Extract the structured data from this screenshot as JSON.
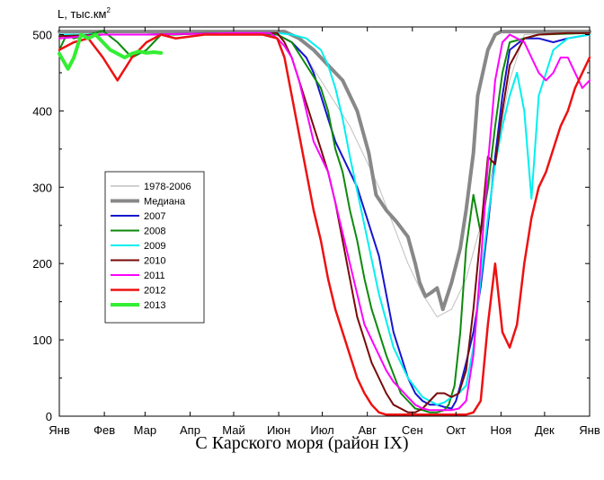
{
  "caption": "С Карского моря (район IX)",
  "chart_data": {
    "type": "line",
    "ylabel": "L, тыс.км",
    "ylabel_sup": "2",
    "xlabel": "",
    "xlim": [
      0,
      365
    ],
    "ylim": [
      0,
      510
    ],
    "yticks": [
      0,
      100,
      200,
      300,
      400,
      500
    ],
    "x_tick_labels": [
      "Янв",
      "Фев",
      "Мар",
      "Апр",
      "Май",
      "Июн",
      "Июл",
      "Авг",
      "Сен",
      "Окт",
      "Ноя",
      "Дек",
      "Янв"
    ],
    "x_tick_positions": [
      0,
      31,
      59,
      90,
      120,
      151,
      181,
      212,
      243,
      273,
      304,
      334,
      365
    ],
    "grid": false,
    "legend_position": "left-middle",
    "series": [
      {
        "name": "1978-2006",
        "color": "#c0c0c0",
        "width": 1,
        "x": [
          0,
          140,
          150,
          160,
          170,
          180,
          190,
          200,
          210,
          220,
          230,
          240,
          250,
          260,
          270,
          280,
          290,
          300,
          310,
          320,
          365
        ],
        "values": [
          504,
          504,
          500,
          490,
          470,
          440,
          410,
          380,
          340,
          300,
          250,
          200,
          160,
          130,
          140,
          180,
          250,
          340,
          440,
          500,
          504
        ]
      },
      {
        "name": "Медиана",
        "color": "#888888",
        "width": 4,
        "x": [
          0,
          155,
          165,
          175,
          185,
          195,
          205,
          213,
          218,
          225,
          232,
          240,
          245,
          248,
          252,
          256,
          260,
          264,
          270,
          276,
          280,
          285,
          288,
          295,
          300,
          304,
          365
        ],
        "values": [
          504,
          504,
          495,
          480,
          460,
          440,
          400,
          345,
          290,
          270,
          255,
          235,
          200,
          175,
          157,
          162,
          168,
          140,
          175,
          220,
          270,
          345,
          420,
          480,
          500,
          504,
          504
        ]
      },
      {
        "name": "2007",
        "color": "#1515d0",
        "width": 2,
        "x": [
          0,
          30,
          60,
          120,
          150,
          160,
          170,
          175,
          180,
          185,
          190,
          200,
          205,
          210,
          215,
          220,
          225,
          230,
          235,
          240,
          245,
          250,
          255,
          260,
          265,
          270,
          273,
          276,
          280,
          285,
          290,
          295,
          300,
          305,
          310,
          320,
          330,
          340,
          350,
          365
        ],
        "values": [
          498,
          500,
          500,
          502,
          500,
          490,
          470,
          450,
          420,
          390,
          360,
          320,
          300,
          270,
          240,
          210,
          160,
          110,
          80,
          50,
          30,
          20,
          15,
          15,
          12,
          10,
          20,
          40,
          70,
          110,
          170,
          250,
          340,
          420,
          480,
          495,
          495,
          490,
          495,
          500
        ]
      },
      {
        "name": "2008",
        "color": "#0d8a0d",
        "width": 2,
        "x": [
          0,
          5,
          10,
          20,
          30,
          40,
          50,
          60,
          70,
          80,
          100,
          120,
          150,
          160,
          170,
          180,
          185,
          190,
          195,
          200,
          205,
          210,
          215,
          220,
          225,
          230,
          235,
          240,
          245,
          250,
          255,
          260,
          265,
          268,
          272,
          276,
          280,
          285,
          290,
          295,
          300,
          305,
          310,
          330,
          365
        ],
        "values": [
          480,
          500,
          495,
          500,
          505,
          490,
          470,
          480,
          500,
          500,
          502,
          502,
          500,
          490,
          460,
          430,
          400,
          350,
          320,
          270,
          230,
          180,
          140,
          110,
          80,
          55,
          30,
          20,
          10,
          8,
          5,
          5,
          8,
          15,
          40,
          110,
          220,
          290,
          240,
          300,
          380,
          450,
          490,
          500,
          502
        ]
      },
      {
        "name": "2009",
        "color": "#00f0f0",
        "width": 2,
        "x": [
          0,
          30,
          60,
          120,
          150,
          160,
          170,
          180,
          185,
          190,
          195,
          200,
          210,
          220,
          230,
          240,
          250,
          260,
          265,
          270,
          275,
          280,
          285,
          290,
          295,
          300,
          305,
          310,
          315,
          320,
          325,
          330,
          340,
          350,
          365
        ],
        "values": [
          500,
          500,
          500,
          502,
          502,
          500,
          495,
          480,
          460,
          430,
          390,
          340,
          250,
          160,
          90,
          50,
          25,
          15,
          18,
          25,
          30,
          40,
          90,
          180,
          260,
          330,
          380,
          420,
          450,
          400,
          285,
          420,
          480,
          495,
          500
        ]
      },
      {
        "name": "2010",
        "color": "#7a0a0a",
        "width": 2,
        "x": [
          0,
          30,
          60,
          120,
          150,
          155,
          160,
          165,
          170,
          175,
          180,
          185,
          190,
          195,
          200,
          205,
          210,
          215,
          220,
          225,
          230,
          235,
          240,
          245,
          250,
          255,
          260,
          265,
          270,
          275,
          280,
          285,
          290,
          295,
          300,
          305,
          310,
          320,
          330,
          350,
          365
        ],
        "values": [
          498,
          500,
          500,
          502,
          502,
          490,
          470,
          440,
          410,
          380,
          350,
          320,
          280,
          230,
          180,
          130,
          100,
          70,
          50,
          30,
          15,
          10,
          5,
          5,
          10,
          20,
          30,
          30,
          25,
          30,
          60,
          140,
          240,
          340,
          330,
          400,
          460,
          495,
          500,
          502,
          502
        ]
      },
      {
        "name": "2011",
        "color": "#ff00ff",
        "width": 2,
        "x": [
          0,
          30,
          60,
          120,
          145,
          150,
          155,
          160,
          165,
          170,
          175,
          180,
          185,
          190,
          195,
          200,
          205,
          210,
          215,
          220,
          225,
          230,
          235,
          240,
          245,
          250,
          255,
          260,
          270,
          275,
          280,
          285,
          290,
          295,
          300,
          305,
          310,
          315,
          320,
          325,
          330,
          335,
          340,
          345,
          350,
          355,
          360,
          365
        ],
        "values": [
          495,
          500,
          500,
          502,
          502,
          495,
          485,
          470,
          440,
          400,
          360,
          340,
          320,
          280,
          240,
          200,
          160,
          120,
          100,
          80,
          60,
          45,
          35,
          25,
          15,
          10,
          8,
          8,
          8,
          10,
          20,
          80,
          200,
          330,
          440,
          490,
          500,
          495,
          490,
          470,
          450,
          440,
          450,
          470,
          470,
          450,
          430,
          440
        ]
      },
      {
        "name": "2012",
        "color": "#ee1111",
        "width": 2.5,
        "x": [
          0,
          10,
          20,
          30,
          40,
          50,
          60,
          70,
          80,
          100,
          120,
          140,
          150,
          155,
          160,
          165,
          170,
          175,
          180,
          185,
          190,
          195,
          200,
          205,
          210,
          215,
          220,
          225,
          230,
          235,
          240,
          250,
          260,
          270,
          280,
          285,
          290,
          295,
          300,
          305,
          310,
          315,
          320,
          325,
          330,
          335,
          340,
          345,
          350,
          355,
          360,
          365
        ],
        "values": [
          480,
          490,
          495,
          470,
          440,
          470,
          490,
          500,
          495,
          500,
          500,
          500,
          495,
          470,
          420,
          370,
          320,
          270,
          230,
          180,
          140,
          110,
          80,
          50,
          30,
          15,
          5,
          2,
          2,
          2,
          2,
          2,
          2,
          2,
          2,
          5,
          20,
          120,
          200,
          110,
          90,
          120,
          200,
          260,
          300,
          320,
          350,
          380,
          400,
          430,
          450,
          470
        ]
      },
      {
        "name": "2013",
        "color": "#33ee33",
        "width": 4,
        "x": [
          0,
          3,
          6,
          10,
          15,
          20,
          25,
          30,
          35,
          40,
          45,
          50,
          55,
          60,
          65,
          70
        ],
        "values": [
          475,
          465,
          455,
          470,
          500,
          495,
          500,
          490,
          480,
          475,
          470,
          475,
          478,
          476,
          477,
          476
        ]
      }
    ]
  }
}
